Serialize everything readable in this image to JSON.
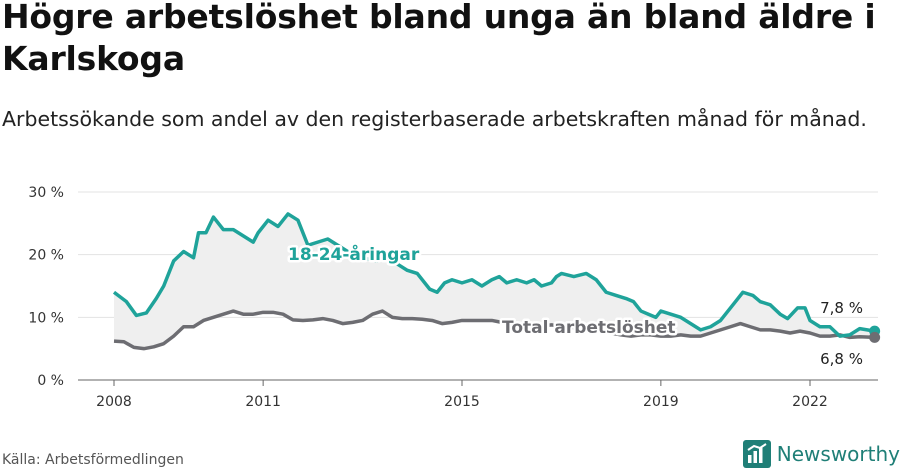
{
  "title": "Högre arbetslöshet bland unga än bland äldre i Karlskoga",
  "subtitle": "Arbetssökande som andel av den registerbaserade arbetskraften månad för månad.",
  "source": "Källa: Arbetsförmedlingen",
  "brand": "Newsworthy",
  "colors": {
    "youth": "#1fa39a",
    "total": "#6d6d72",
    "band": "#efefef"
  },
  "chart_data": {
    "type": "line",
    "ylim": [
      0,
      30
    ],
    "yticks": [
      0,
      10,
      20,
      30
    ],
    "ytick_labels": [
      "0 %",
      "10 %",
      "20 %",
      "30 %"
    ],
    "xlim": [
      2007.9,
      2023.5
    ],
    "xticks": [
      2008,
      2011,
      2015,
      2019,
      2022
    ],
    "xtick_labels": [
      "2008",
      "2011",
      "2015",
      "2019",
      "2022"
    ],
    "grid": true,
    "series": [
      {
        "name": "18-24-åringar",
        "end_label": "7,8 %",
        "points": [
          [
            2008.0,
            14.0
          ],
          [
            2008.25,
            12.5
          ],
          [
            2008.45,
            10.3
          ],
          [
            2008.65,
            10.7
          ],
          [
            2008.85,
            13.0
          ],
          [
            2009.0,
            15.0
          ],
          [
            2009.2,
            19.0
          ],
          [
            2009.4,
            20.5
          ],
          [
            2009.6,
            19.5
          ],
          [
            2009.7,
            23.5
          ],
          [
            2009.85,
            23.5
          ],
          [
            2010.0,
            26.0
          ],
          [
            2010.2,
            24.0
          ],
          [
            2010.4,
            24.0
          ],
          [
            2010.6,
            23.0
          ],
          [
            2010.8,
            22.0
          ],
          [
            2010.9,
            23.5
          ],
          [
            2011.1,
            25.5
          ],
          [
            2011.3,
            24.5
          ],
          [
            2011.5,
            26.5
          ],
          [
            2011.7,
            25.5
          ],
          [
            2011.9,
            21.5
          ],
          [
            2012.1,
            22.0
          ],
          [
            2012.3,
            22.5
          ],
          [
            2012.4,
            22.0
          ],
          [
            2012.7,
            20.5
          ],
          [
            2013.0,
            19.5
          ],
          [
            2013.3,
            19.0
          ],
          [
            2013.5,
            20.0
          ],
          [
            2013.7,
            18.5
          ],
          [
            2013.9,
            17.5
          ],
          [
            2014.1,
            17.0
          ],
          [
            2014.35,
            14.5
          ],
          [
            2014.5,
            14.0
          ],
          [
            2014.65,
            15.5
          ],
          [
            2014.8,
            16.0
          ],
          [
            2015.0,
            15.5
          ],
          [
            2015.2,
            16.0
          ],
          [
            2015.4,
            15.0
          ],
          [
            2015.6,
            16.0
          ],
          [
            2015.75,
            16.5
          ],
          [
            2015.9,
            15.5
          ],
          [
            2016.1,
            16.0
          ],
          [
            2016.3,
            15.5
          ],
          [
            2016.45,
            16.0
          ],
          [
            2016.6,
            15.0
          ],
          [
            2016.8,
            15.5
          ],
          [
            2016.9,
            16.5
          ],
          [
            2017.0,
            17.0
          ],
          [
            2017.25,
            16.5
          ],
          [
            2017.5,
            17.0
          ],
          [
            2017.7,
            16.0
          ],
          [
            2017.9,
            14.0
          ],
          [
            2018.1,
            13.5
          ],
          [
            2018.3,
            13.0
          ],
          [
            2018.45,
            12.5
          ],
          [
            2018.6,
            11.0
          ],
          [
            2018.75,
            10.5
          ],
          [
            2018.9,
            10.0
          ],
          [
            2019.0,
            11.0
          ],
          [
            2019.2,
            10.5
          ],
          [
            2019.4,
            10.0
          ],
          [
            2019.6,
            9.0
          ],
          [
            2019.8,
            8.0
          ],
          [
            2020.0,
            8.5
          ],
          [
            2020.2,
            9.5
          ],
          [
            2020.35,
            11.0
          ],
          [
            2020.5,
            12.5
          ],
          [
            2020.65,
            14.0
          ],
          [
            2020.85,
            13.5
          ],
          [
            2021.0,
            12.5
          ],
          [
            2021.2,
            12.0
          ],
          [
            2021.4,
            10.5
          ],
          [
            2021.55,
            9.8
          ],
          [
            2021.75,
            11.5
          ],
          [
            2021.9,
            11.5
          ],
          [
            2022.0,
            9.5
          ],
          [
            2022.2,
            8.5
          ],
          [
            2022.4,
            8.5
          ],
          [
            2022.6,
            7.0
          ],
          [
            2022.8,
            7.2
          ],
          [
            2023.0,
            8.2
          ],
          [
            2023.3,
            7.8
          ]
        ]
      },
      {
        "name": "Total arbetslöshet",
        "end_label": "6,8 %",
        "points": [
          [
            2008.0,
            6.2
          ],
          [
            2008.2,
            6.1
          ],
          [
            2008.4,
            5.2
          ],
          [
            2008.6,
            5.0
          ],
          [
            2008.8,
            5.3
          ],
          [
            2009.0,
            5.8
          ],
          [
            2009.2,
            7.0
          ],
          [
            2009.4,
            8.5
          ],
          [
            2009.6,
            8.5
          ],
          [
            2009.8,
            9.5
          ],
          [
            2010.0,
            10.0
          ],
          [
            2010.2,
            10.5
          ],
          [
            2010.4,
            11.0
          ],
          [
            2010.6,
            10.5
          ],
          [
            2010.8,
            10.5
          ],
          [
            2011.0,
            10.8
          ],
          [
            2011.2,
            10.8
          ],
          [
            2011.4,
            10.5
          ],
          [
            2011.6,
            9.6
          ],
          [
            2011.8,
            9.5
          ],
          [
            2012.0,
            9.6
          ],
          [
            2012.2,
            9.8
          ],
          [
            2012.4,
            9.5
          ],
          [
            2012.6,
            9.0
          ],
          [
            2012.8,
            9.2
          ],
          [
            2013.0,
            9.5
          ],
          [
            2013.2,
            10.5
          ],
          [
            2013.4,
            11.0
          ],
          [
            2013.6,
            10.0
          ],
          [
            2013.8,
            9.8
          ],
          [
            2014.0,
            9.8
          ],
          [
            2014.2,
            9.7
          ],
          [
            2014.4,
            9.5
          ],
          [
            2014.6,
            9.0
          ],
          [
            2014.8,
            9.2
          ],
          [
            2015.0,
            9.5
          ],
          [
            2015.2,
            9.5
          ],
          [
            2015.4,
            9.5
          ],
          [
            2015.6,
            9.5
          ],
          [
            2015.8,
            9.2
          ],
          [
            2016.0,
            9.0
          ],
          [
            2016.2,
            8.8
          ],
          [
            2016.4,
            8.8
          ],
          [
            2016.6,
            8.6
          ],
          [
            2016.8,
            8.8
          ],
          [
            2017.0,
            8.6
          ],
          [
            2017.2,
            8.4
          ],
          [
            2017.4,
            8.2
          ],
          [
            2017.6,
            8.0
          ],
          [
            2017.8,
            7.8
          ],
          [
            2018.0,
            7.5
          ],
          [
            2018.2,
            7.2
          ],
          [
            2018.4,
            7.0
          ],
          [
            2018.6,
            7.2
          ],
          [
            2018.8,
            7.2
          ],
          [
            2019.0,
            7.0
          ],
          [
            2019.2,
            7.0
          ],
          [
            2019.4,
            7.2
          ],
          [
            2019.6,
            7.0
          ],
          [
            2019.8,
            7.0
          ],
          [
            2020.0,
            7.5
          ],
          [
            2020.2,
            8.0
          ],
          [
            2020.4,
            8.5
          ],
          [
            2020.6,
            9.0
          ],
          [
            2020.8,
            8.5
          ],
          [
            2021.0,
            8.0
          ],
          [
            2021.2,
            8.0
          ],
          [
            2021.4,
            7.8
          ],
          [
            2021.6,
            7.5
          ],
          [
            2021.8,
            7.8
          ],
          [
            2022.0,
            7.5
          ],
          [
            2022.2,
            7.0
          ],
          [
            2022.4,
            7.0
          ],
          [
            2022.6,
            7.2
          ],
          [
            2022.8,
            6.8
          ],
          [
            2023.0,
            6.9
          ],
          [
            2023.3,
            6.8
          ]
        ]
      }
    ]
  }
}
